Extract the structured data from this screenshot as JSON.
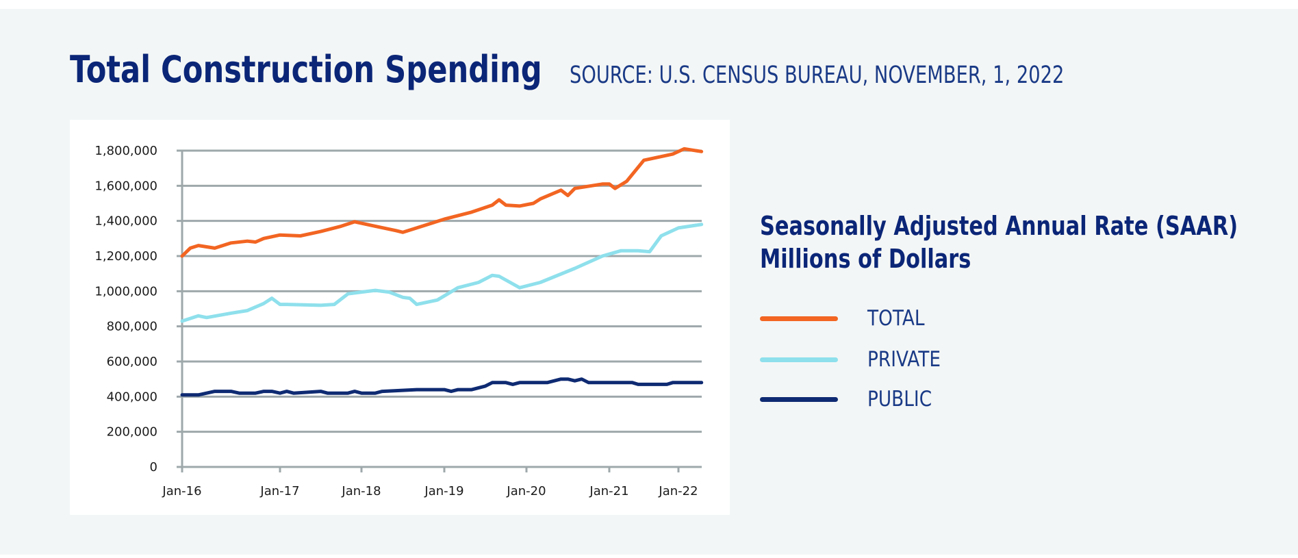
{
  "header": {
    "title": "Total Construction Spending",
    "source": "SOURCE: U.S. CENSUS BUREAU, NOVEMBER, 1, 2022"
  },
  "legend": {
    "title_line1": "Seasonally Adjusted Annual Rate (SAAR)",
    "title_line2": "Millions of Dollars",
    "items": [
      {
        "label": "TOTAL",
        "color": "#f26522"
      },
      {
        "label": "PRIVATE",
        "color": "#8ee0ec"
      },
      {
        "label": "PUBLIC",
        "color": "#0e2a72"
      }
    ]
  },
  "chart_data": {
    "type": "line",
    "title": "Total Construction Spending",
    "xlabel": "",
    "ylabel": "",
    "ylim": [
      0,
      1800000
    ],
    "yticks": [
      "0",
      "200,000",
      "400,000",
      "600,000",
      "800,000",
      "1,000,000",
      "1,200,000",
      "1,400,000",
      "1,600,000",
      "1,800,000"
    ],
    "xticks": [
      "Jan-16",
      "Jan-17",
      "Jan-18",
      "Jan-19",
      "Jan-20",
      "Jan-21",
      "Jan-22"
    ],
    "grid": true,
    "legend_position": "right",
    "series": [
      {
        "name": "TOTAL",
        "color": "#f26522",
        "points": [
          [
            "2016-01",
            1200000
          ],
          [
            "2016-02",
            1245000
          ],
          [
            "2016-03",
            1260000
          ],
          [
            "2016-05",
            1245000
          ],
          [
            "2016-07",
            1275000
          ],
          [
            "2016-09",
            1285000
          ],
          [
            "2016-10",
            1280000
          ],
          [
            "2016-11",
            1300000
          ],
          [
            "2017-01",
            1320000
          ],
          [
            "2017-04",
            1315000
          ],
          [
            "2017-07",
            1340000
          ],
          [
            "2017-10",
            1370000
          ],
          [
            "2017-12",
            1395000
          ],
          [
            "2018-03",
            1370000
          ],
          [
            "2018-06",
            1345000
          ],
          [
            "2018-07",
            1335000
          ],
          [
            "2018-09",
            1360000
          ],
          [
            "2019-01",
            1410000
          ],
          [
            "2019-05",
            1450000
          ],
          [
            "2019-08",
            1490000
          ],
          [
            "2019-09",
            1520000
          ],
          [
            "2019-10",
            1490000
          ],
          [
            "2019-12",
            1485000
          ],
          [
            "2020-02",
            1500000
          ],
          [
            "2020-03",
            1525000
          ],
          [
            "2020-06",
            1575000
          ],
          [
            "2020-07",
            1545000
          ],
          [
            "2020-08",
            1585000
          ],
          [
            "2020-12",
            1610000
          ],
          [
            "2021-01",
            1610000
          ],
          [
            "2021-02",
            1585000
          ],
          [
            "2021-04",
            1625000
          ],
          [
            "2021-07",
            1745000
          ],
          [
            "2021-12",
            1780000
          ],
          [
            "2022-02",
            1810000
          ],
          [
            "2022-05",
            1795000
          ]
        ]
      },
      {
        "name": "PRIVATE",
        "color": "#8ee0ec",
        "points": [
          [
            "2016-01",
            830000
          ],
          [
            "2016-03",
            860000
          ],
          [
            "2016-04",
            850000
          ],
          [
            "2016-07",
            875000
          ],
          [
            "2016-09",
            890000
          ],
          [
            "2016-11",
            930000
          ],
          [
            "2016-12",
            960000
          ],
          [
            "2017-01",
            925000
          ],
          [
            "2017-02",
            925000
          ],
          [
            "2017-07",
            920000
          ],
          [
            "2017-09",
            925000
          ],
          [
            "2017-11",
            985000
          ],
          [
            "2018-01",
            995000
          ],
          [
            "2018-03",
            1005000
          ],
          [
            "2018-05",
            995000
          ],
          [
            "2018-07",
            965000
          ],
          [
            "2018-08",
            960000
          ],
          [
            "2018-09",
            925000
          ],
          [
            "2018-12",
            950000
          ],
          [
            "2019-03",
            1020000
          ],
          [
            "2019-06",
            1050000
          ],
          [
            "2019-08",
            1090000
          ],
          [
            "2019-09",
            1085000
          ],
          [
            "2019-12",
            1020000
          ],
          [
            "2020-03",
            1050000
          ],
          [
            "2020-08",
            1130000
          ],
          [
            "2020-12",
            1200000
          ],
          [
            "2021-03",
            1230000
          ],
          [
            "2021-06",
            1230000
          ],
          [
            "2021-08",
            1225000
          ],
          [
            "2021-10",
            1315000
          ],
          [
            "2022-01",
            1360000
          ],
          [
            "2022-05",
            1380000
          ]
        ]
      },
      {
        "name": "PUBLIC",
        "color": "#0e2a72",
        "points": [
          [
            "2016-01",
            410000
          ],
          [
            "2016-03",
            410000
          ],
          [
            "2016-04",
            420000
          ],
          [
            "2016-05",
            430000
          ],
          [
            "2016-07",
            430000
          ],
          [
            "2016-08",
            420000
          ],
          [
            "2016-10",
            420000
          ],
          [
            "2016-11",
            430000
          ],
          [
            "2016-12",
            430000
          ],
          [
            "2017-01",
            420000
          ],
          [
            "2017-02",
            430000
          ],
          [
            "2017-03",
            420000
          ],
          [
            "2017-07",
            430000
          ],
          [
            "2017-08",
            420000
          ],
          [
            "2017-11",
            420000
          ],
          [
            "2017-12",
            430000
          ],
          [
            "2018-01",
            420000
          ],
          [
            "2018-03",
            420000
          ],
          [
            "2018-04",
            430000
          ],
          [
            "2018-09",
            440000
          ],
          [
            "2019-01",
            440000
          ],
          [
            "2019-02",
            430000
          ],
          [
            "2019-03",
            440000
          ],
          [
            "2019-05",
            440000
          ],
          [
            "2019-07",
            460000
          ],
          [
            "2019-08",
            480000
          ],
          [
            "2019-10",
            480000
          ],
          [
            "2019-11",
            470000
          ],
          [
            "2019-12",
            480000
          ],
          [
            "2020-04",
            480000
          ],
          [
            "2020-06",
            500000
          ],
          [
            "2020-07",
            500000
          ],
          [
            "2020-08",
            490000
          ],
          [
            "2020-09",
            500000
          ],
          [
            "2020-10",
            480000
          ],
          [
            "2021-05",
            480000
          ],
          [
            "2021-06",
            470000
          ],
          [
            "2021-11",
            470000
          ],
          [
            "2021-12",
            480000
          ],
          [
            "2022-05",
            480000
          ]
        ]
      }
    ]
  }
}
